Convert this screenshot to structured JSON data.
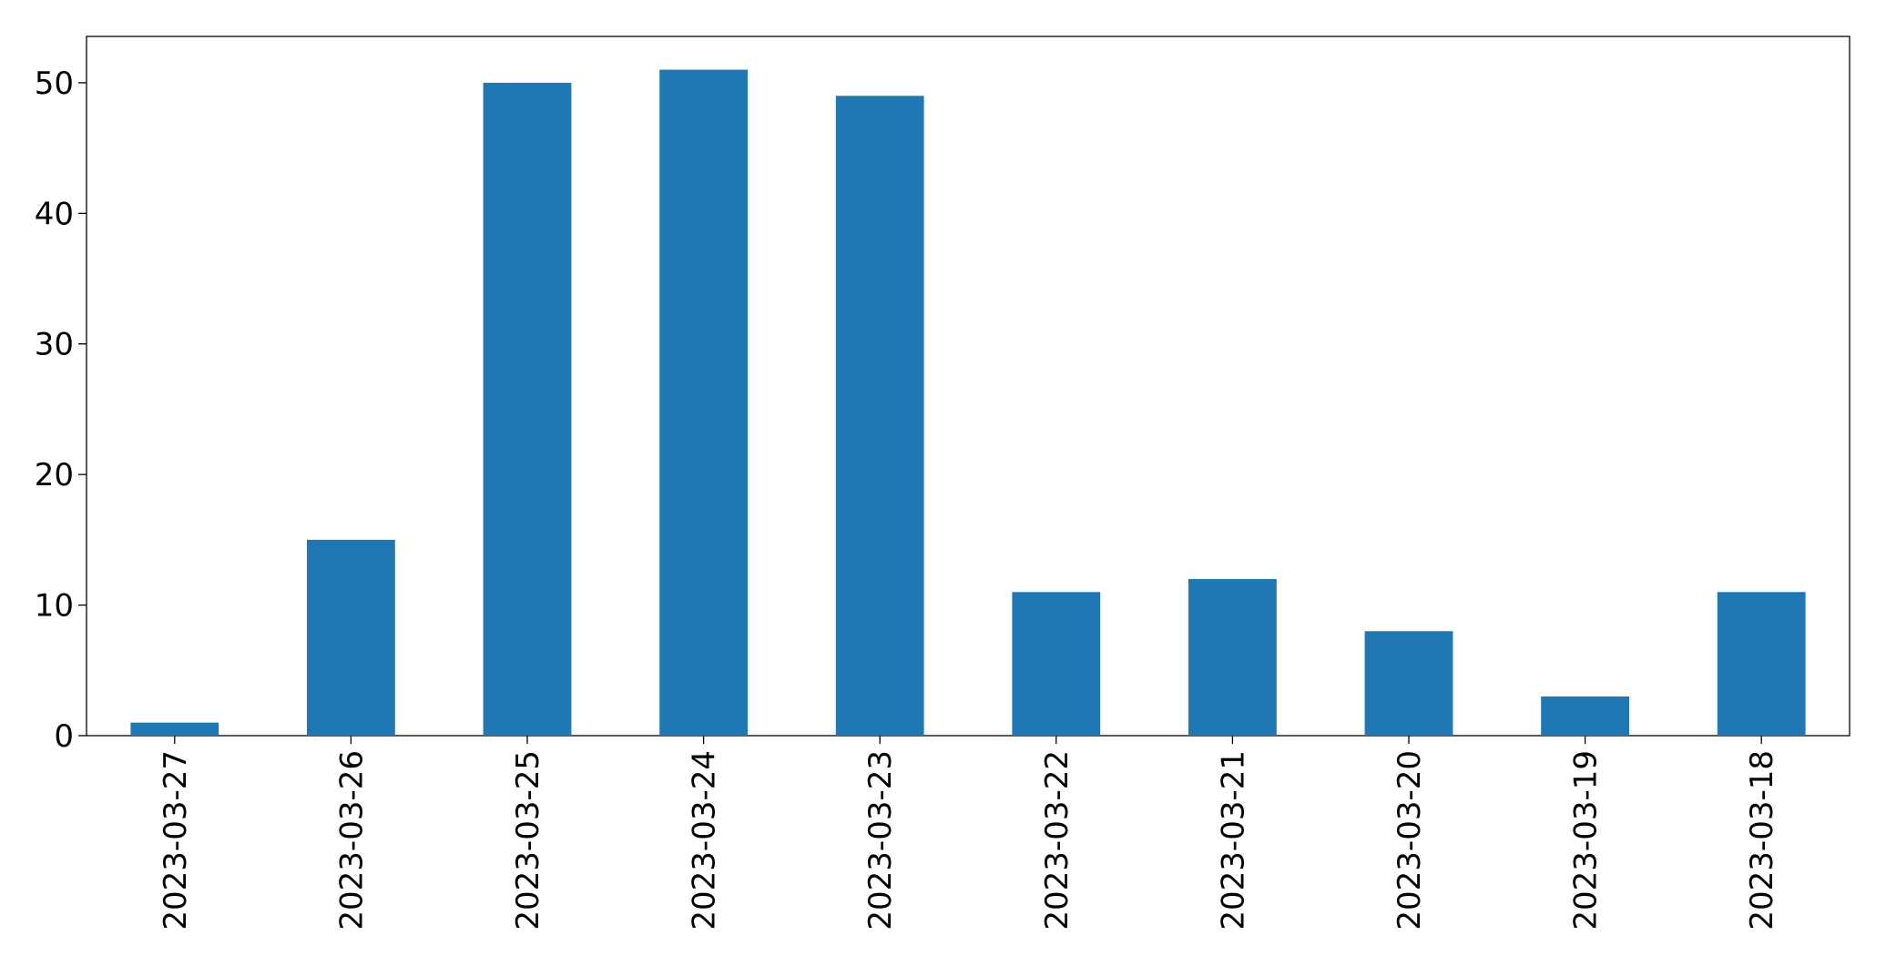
{
  "chart_data": {
    "type": "bar",
    "categories": [
      "2023-03-27",
      "2023-03-26",
      "2023-03-25",
      "2023-03-24",
      "2023-03-23",
      "2023-03-22",
      "2023-03-21",
      "2023-03-20",
      "2023-03-19",
      "2023-03-18"
    ],
    "values": [
      1,
      15,
      50,
      51,
      49,
      11,
      12,
      8,
      3,
      11
    ],
    "color": "#1f77b4",
    "ylim": [
      0,
      53.55
    ],
    "yticks": [
      0,
      10,
      20,
      30,
      40,
      50
    ],
    "grid": false
  }
}
